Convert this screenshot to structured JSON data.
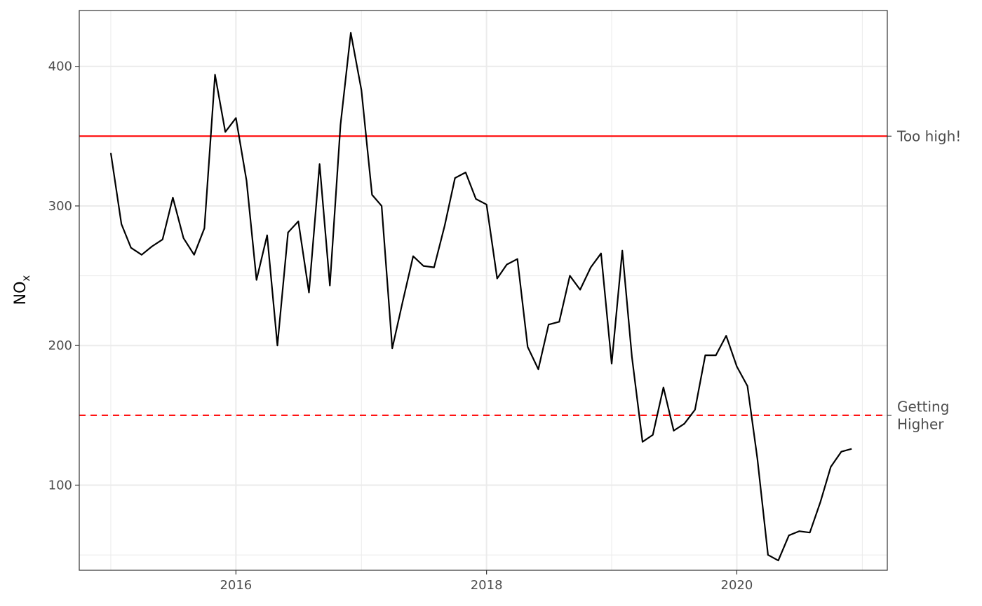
{
  "chart_data": {
    "type": "line",
    "title": "",
    "xlabel": "",
    "ylabel": "NO",
    "ylabel_subscript": "x",
    "xlim": [
      "2014-10-01",
      "2021-03-15"
    ],
    "ylim": [
      39,
      440
    ],
    "x_ticks": [
      {
        "date": "2016-01-01",
        "label": "2016"
      },
      {
        "date": "2018-01-01",
        "label": "2018"
      },
      {
        "date": "2020-01-01",
        "label": "2020"
      }
    ],
    "x_minor_ticks": [
      "2015-01-01",
      "2017-01-01",
      "2019-01-01",
      "2021-01-01"
    ],
    "y_ticks": [
      100,
      200,
      300,
      400
    ],
    "y_minor_ticks": [
      50,
      150,
      250,
      350
    ],
    "grid": true,
    "series": [
      {
        "color": "#000000",
        "x": [
          "2015-01-01",
          "2015-02-01",
          "2015-03-01",
          "2015-04-01",
          "2015-05-01",
          "2015-06-01",
          "2015-07-01",
          "2015-08-01",
          "2015-09-01",
          "2015-10-01",
          "2015-11-01",
          "2015-12-01",
          "2016-01-01",
          "2016-02-01",
          "2016-03-01",
          "2016-04-01",
          "2016-05-01",
          "2016-06-01",
          "2016-07-01",
          "2016-08-01",
          "2016-09-01",
          "2016-10-01",
          "2016-11-01",
          "2016-12-01",
          "2017-01-01",
          "2017-02-01",
          "2017-03-01",
          "2017-04-01",
          "2017-05-01",
          "2017-06-01",
          "2017-07-01",
          "2017-08-01",
          "2017-09-01",
          "2017-10-01",
          "2017-11-01",
          "2017-12-01",
          "2018-01-01",
          "2018-02-01",
          "2018-03-01",
          "2018-04-01",
          "2018-05-01",
          "2018-06-01",
          "2018-07-01",
          "2018-08-01",
          "2018-09-01",
          "2018-10-01",
          "2018-11-01",
          "2018-12-01",
          "2019-01-01",
          "2019-02-01",
          "2019-03-01",
          "2019-04-01",
          "2019-05-01",
          "2019-06-01",
          "2019-07-01",
          "2019-08-01",
          "2019-09-01",
          "2019-10-01",
          "2019-11-01",
          "2019-12-01",
          "2020-01-01",
          "2020-02-01",
          "2020-03-01",
          "2020-04-01",
          "2020-05-01",
          "2020-06-01",
          "2020-07-01",
          "2020-08-01",
          "2020-09-01",
          "2020-10-01",
          "2020-11-01",
          "2020-12-01"
        ],
        "values": [
          338,
          287,
          270,
          265,
          271,
          276,
          306,
          277,
          265,
          284,
          394,
          353,
          363,
          318,
          247,
          279,
          200,
          281,
          289,
          238,
          330,
          243,
          358,
          424,
          383,
          308,
          300,
          198,
          231,
          264,
          257,
          256,
          286,
          320,
          324,
          305,
          301,
          248,
          258,
          262,
          199,
          183,
          215,
          217,
          250,
          240,
          256,
          266,
          187,
          268,
          192,
          131,
          136,
          170,
          139,
          144,
          154,
          193,
          193,
          207,
          185,
          171,
          119,
          50,
          46,
          64,
          67,
          66,
          88,
          113,
          124,
          126
        ]
      }
    ],
    "reference_lines": [
      {
        "value": 350,
        "label": "Too high!",
        "style": "solid",
        "color": "#ff0000"
      },
      {
        "value": 150,
        "label_lines": [
          "Getting",
          "Higher"
        ],
        "style": "dashed",
        "color": "#ff0000"
      }
    ]
  }
}
